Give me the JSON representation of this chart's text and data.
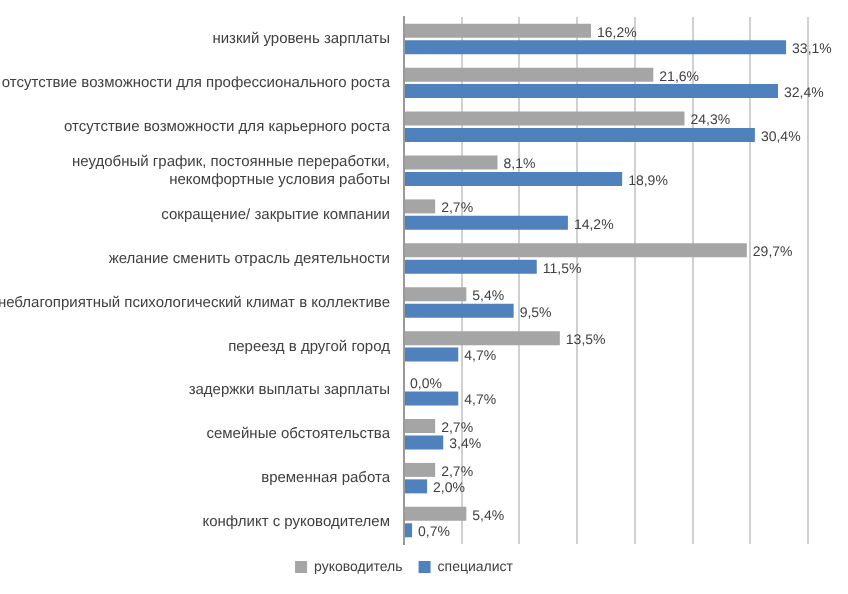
{
  "chart_data": {
    "type": "bar",
    "orientation": "horizontal",
    "categories": [
      "низкий уровень зарплаты",
      "отсутствие возможности для профессионального роста",
      "отсутствие возможности для карьерного роста",
      "неудобный график, постоянные переработки, некомфортные условия работы",
      "сокращение/ закрытие компании",
      "желание сменить отрасль деятельности",
      "неблагоприятный психологический климат в коллективе",
      "переезд в другой город",
      "задержки выплаты зарплаты",
      "семейные обстоятельства",
      "временная работа",
      "конфликт с руководителем"
    ],
    "series": [
      {
        "name": "руководитель",
        "color": "#a5a5a5",
        "values": [
          16.2,
          21.6,
          24.3,
          8.1,
          2.7,
          29.7,
          5.4,
          13.5,
          0.0,
          2.7,
          2.7,
          5.4
        ],
        "value_labels": [
          "16,2%",
          "21,6%",
          "24,3%",
          "8,1%",
          "2,7%",
          "29,7%",
          "5,4%",
          "13,5%",
          "0,0%",
          "2,7%",
          "2,7%",
          "5,4%"
        ]
      },
      {
        "name": "специалист",
        "color": "#4f81bd",
        "values": [
          33.1,
          32.4,
          30.4,
          18.9,
          14.2,
          11.5,
          9.5,
          4.7,
          4.7,
          3.4,
          2.0,
          0.7
        ],
        "value_labels": [
          "33,1%",
          "32,4%",
          "30,4%",
          "18,9%",
          "14,2%",
          "11,5%",
          "9,5%",
          "4,7%",
          "4,7%",
          "3,4%",
          "2,0%",
          "0,7%"
        ]
      }
    ],
    "xlim": [
      0,
      35
    ],
    "xticks": [
      {
        "value": 0,
        "label": null
      },
      {
        "value": 5,
        "label": null
      },
      {
        "value": 10,
        "label": null
      },
      {
        "value": 15,
        "label": null
      },
      {
        "value": 20,
        "label": null
      },
      {
        "value": 25,
        "label": null
      },
      {
        "value": 30,
        "label": null
      },
      {
        "value": 35,
        "label": null
      }
    ],
    "tick_labels": "y",
    "grid": "x",
    "legend": "bottom"
  }
}
